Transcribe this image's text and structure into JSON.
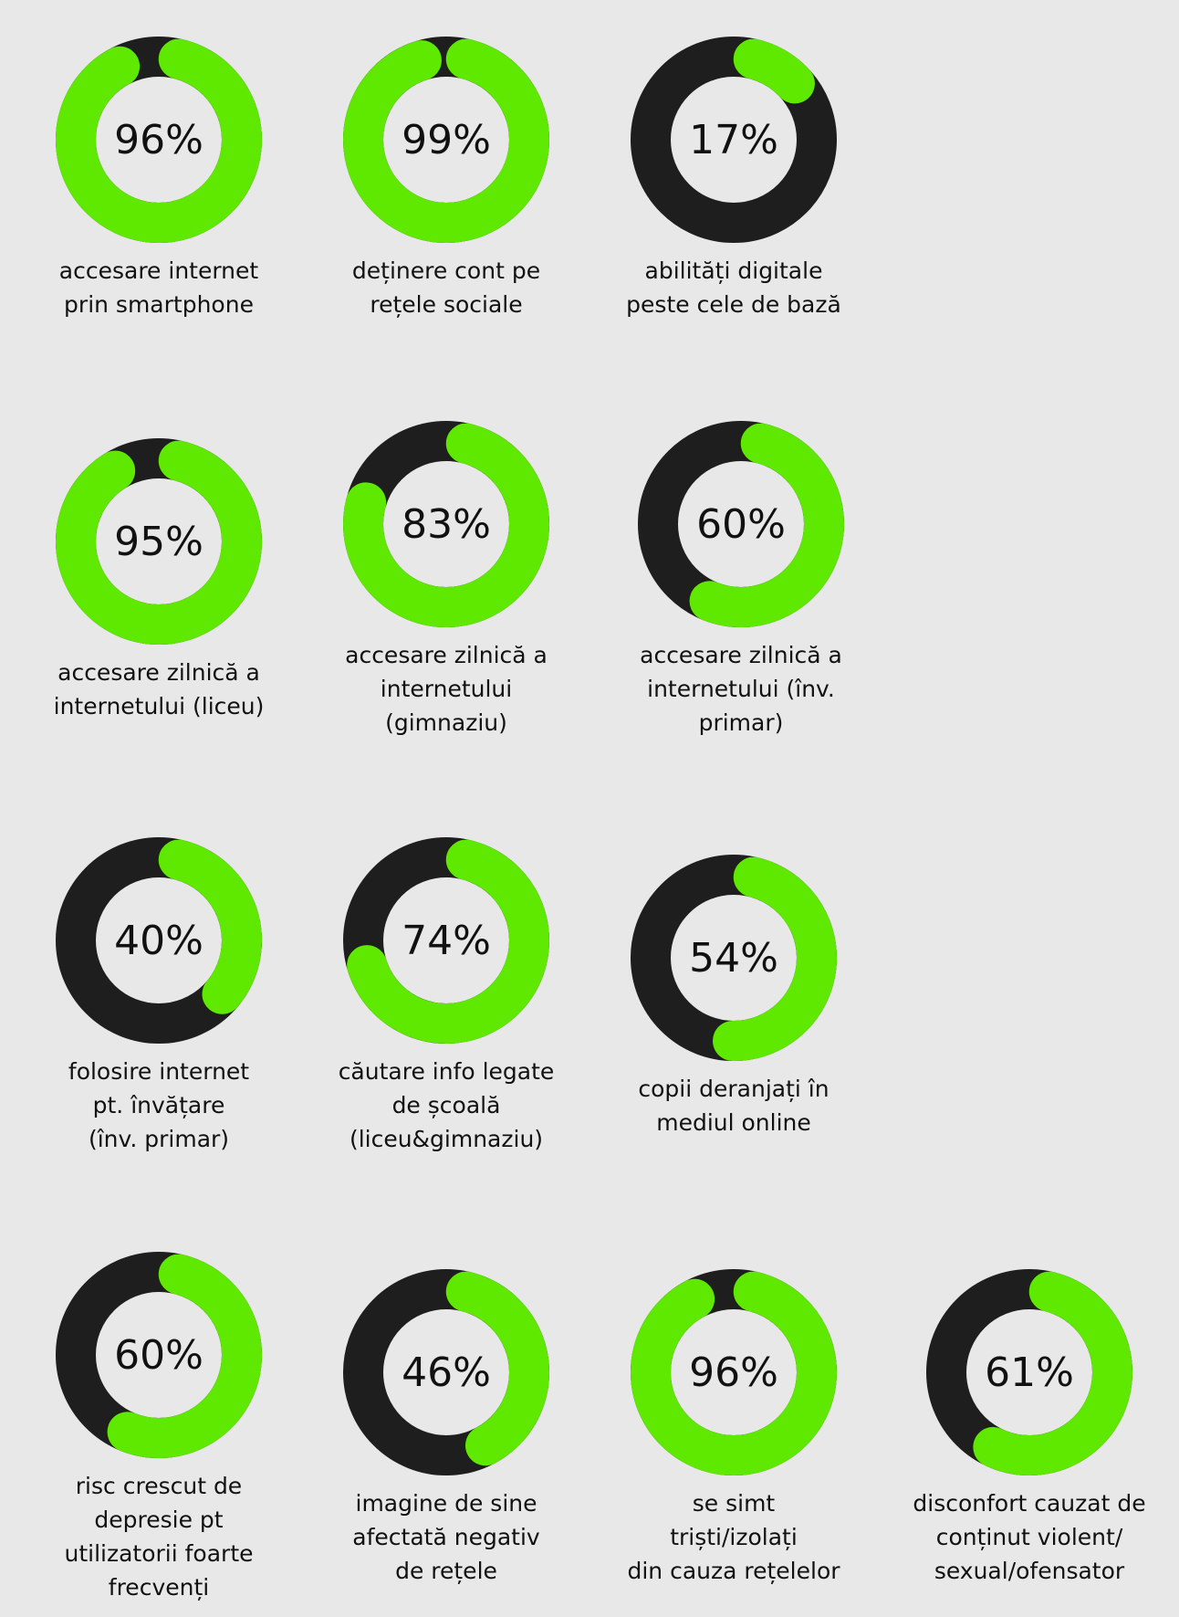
{
  "colors": {
    "background": "#e8e8e8",
    "filled": "#5fe800",
    "track": "#1e1e1e",
    "text": "#111111"
  },
  "chart_data": {
    "type": "donut",
    "title": "",
    "unit": "%",
    "items": [
      {
        "value": 96,
        "label": "96%",
        "caption": [
          "accesare internet",
          "prin smartphone"
        ]
      },
      {
        "value": 99,
        "label": "99%",
        "caption": [
          "deținere cont pe",
          "rețele sociale"
        ]
      },
      {
        "value": 17,
        "label": "17%",
        "caption": [
          "abilități digitale",
          "peste cele de bază"
        ]
      },
      {
        "value": 95,
        "label": "95%",
        "caption": [
          "accesare zilnică a",
          "internetului (liceu)"
        ]
      },
      {
        "value": 83,
        "label": "83%",
        "caption": [
          "accesare zilnică a",
          "internetului",
          "(gimnaziu)"
        ]
      },
      {
        "value": 60,
        "label": "60%",
        "caption": [
          "accesare zilnică a",
          "internetului (înv.",
          "primar)"
        ]
      },
      {
        "value": 40,
        "label": "40%",
        "caption": [
          "folosire internet",
          "pt. învățare",
          "(înv. primar)"
        ]
      },
      {
        "value": 74,
        "label": "74%",
        "caption": [
          "căutare info legate",
          "de școală",
          "(liceu&gimnaziu)"
        ]
      },
      {
        "value": 54,
        "label": "54%",
        "caption": [
          "copii deranjați în",
          "mediul online"
        ]
      },
      {
        "value": 60,
        "label": "60%",
        "caption": [
          "risc crescut de",
          "depresie pt",
          "utilizatorii foarte",
          "frecvenți"
        ]
      },
      {
        "value": 46,
        "label": "46%",
        "caption": [
          "imagine de sine",
          "afectată negativ",
          "de rețele"
        ]
      },
      {
        "value": 96,
        "label": "96%",
        "caption": [
          "se simt",
          "triști/izolați",
          "din cauza rețelelor"
        ]
      },
      {
        "value": 61,
        "label": "61%",
        "caption": [
          "disconfort cauzat de",
          "conținut violent/",
          "sexual/ofensator"
        ]
      }
    ]
  }
}
